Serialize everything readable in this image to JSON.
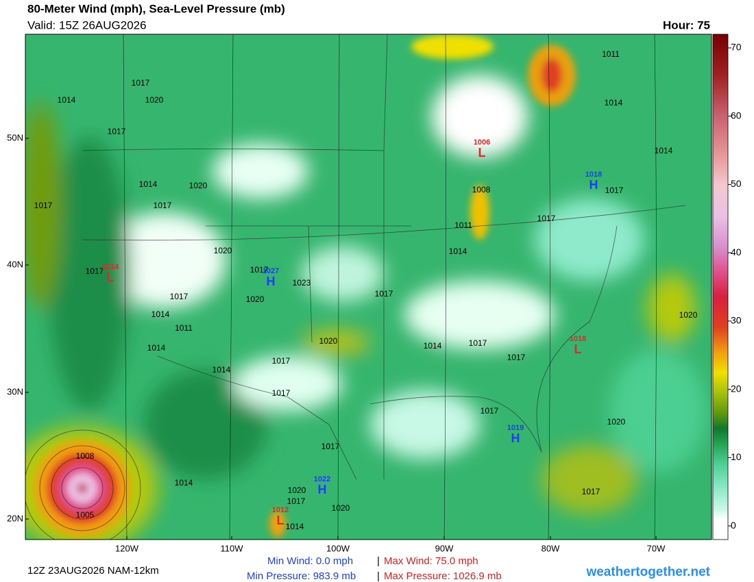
{
  "header": {
    "title": "80-Meter Wind (mph), Sea-Level Pressure (mb)",
    "valid": "Valid: 15Z 26AUG2026",
    "hour": "Hour: 75"
  },
  "map": {
    "lat_labels": [
      "50N",
      "40N",
      "30N",
      "20N"
    ],
    "lon_labels": [
      "120W",
      "110W",
      "100W",
      "90W",
      "80W",
      "70W"
    ],
    "pressure_labels": [
      1017,
      1014,
      1020,
      1017,
      1014,
      1020,
      1017,
      1017,
      1020,
      1017,
      1023,
      1020,
      1017,
      1014,
      1011,
      1014,
      1014,
      1017,
      1020,
      1017,
      1017,
      1014,
      1011,
      1008,
      1017,
      1017,
      1014,
      1011,
      1014,
      1020,
      1017,
      1014,
      1017,
      1017,
      1020,
      1017,
      1017,
      1020,
      1017,
      1020,
      1014,
      1008,
      1005,
      1014,
      1017
    ],
    "centers": [
      {
        "letter": "L",
        "value": 1006
      },
      {
        "letter": "H",
        "value": 1018
      },
      {
        "letter": "L",
        "value": 1014
      },
      {
        "letter": "H",
        "value": 1027
      },
      {
        "letter": "H",
        "value": 1019
      },
      {
        "letter": "L",
        "value": 1018
      },
      {
        "letter": "H",
        "value": 1022
      },
      {
        "letter": "L",
        "value": 1012
      }
    ]
  },
  "colorbar": {
    "lim": [
      -2,
      72
    ],
    "ticks": [
      0,
      10,
      20,
      30,
      40,
      50,
      60,
      70
    ]
  },
  "footer": {
    "run": "12Z 23AUG2026 NAM-12km",
    "min_wind": "Min Wind:   0.0 mph",
    "sep1": "|",
    "max_wind": "Max Wind: 75.0 mph",
    "min_pressure": "Min Pressure: 983.9 mb",
    "sep2": "|",
    "max_pressure": "Max Pressure: 1026.9 mb",
    "site": "weathertogether.net"
  }
}
